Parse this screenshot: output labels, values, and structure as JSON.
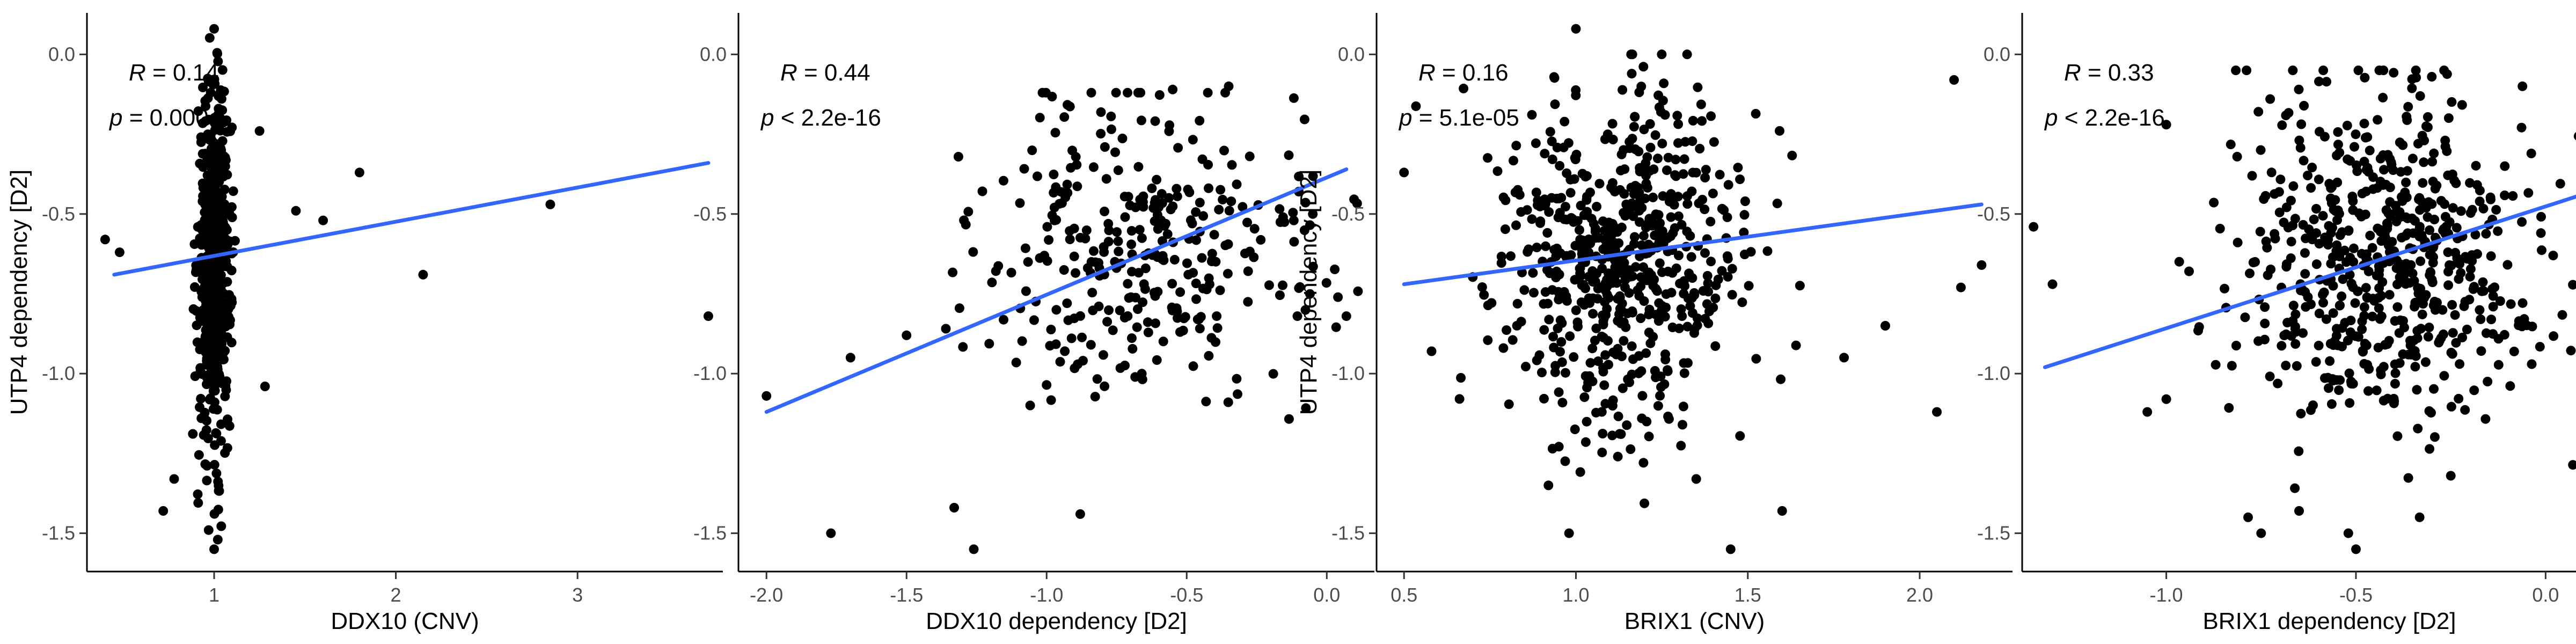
{
  "colors": {
    "point": "#000000",
    "fit_line": "#3366FF",
    "tick_text": "#4d4d4d"
  },
  "chart_data": [
    {
      "type": "scatter",
      "xlabel": "DDX10 (CNV)",
      "ylabel": "UTP4 dependency [D2]",
      "xlim": [
        0.3,
        3.8
      ],
      "ylim": [
        -1.62,
        0.13
      ],
      "xticks": [
        1,
        2,
        3
      ],
      "xtick_labels": [
        "1",
        "2",
        "3"
      ],
      "yticks": [
        0.0,
        -0.5,
        -1.0,
        -1.5
      ],
      "ytick_labels": [
        "0.0",
        "-0.5",
        "-1.0",
        "-1.5"
      ],
      "grid": false,
      "stat_r_label": "R",
      "stat_r_value": " = 0.14",
      "stat_p_label": "p",
      "stat_p_value": " = 0.0004",
      "fit_line": {
        "x": [
          0.45,
          3.72
        ],
        "y": [
          -0.69,
          -0.34
        ]
      },
      "point_cloud": {
        "count": 620,
        "x_center": 1.0,
        "x_spread": 0.045,
        "y_center": -0.66,
        "y_spread": 0.26,
        "y_min": -1.56,
        "y_max": 0.08
      },
      "points": [
        {
          "x": 1.0,
          "y": 0.08
        },
        {
          "x": 0.72,
          "y": -1.43
        },
        {
          "x": 1.0,
          "y": -1.55
        },
        {
          "x": 1.02,
          "y": -1.52
        },
        {
          "x": 0.97,
          "y": -1.49
        },
        {
          "x": 2.15,
          "y": -0.69
        },
        {
          "x": 2.85,
          "y": -0.47
        },
        {
          "x": 3.72,
          "y": -0.82
        },
        {
          "x": 1.6,
          "y": -0.52
        },
        {
          "x": 1.45,
          "y": -0.49
        },
        {
          "x": 1.8,
          "y": -0.37
        },
        {
          "x": 1.25,
          "y": -0.24
        },
        {
          "x": 0.4,
          "y": -0.58
        },
        {
          "x": 0.48,
          "y": -0.62
        },
        {
          "x": 1.28,
          "y": -1.04
        },
        {
          "x": 0.78,
          "y": -1.33
        }
      ]
    },
    {
      "type": "scatter",
      "xlabel": "DDX10 dependency [D2]",
      "ylabel": "",
      "xlim": [
        -2.1,
        0.17
      ],
      "ylim": [
        -1.62,
        0.13
      ],
      "xticks": [
        -2.0,
        -1.5,
        -1.0,
        -0.5,
        0.0
      ],
      "xtick_labels": [
        "-2.0",
        "-1.5",
        "-1.0",
        "-0.5",
        "0.0"
      ],
      "yticks": [
        0.0,
        -0.5,
        -1.0,
        -1.5
      ],
      "ytick_labels": [
        "0.0",
        "-0.5",
        "-1.0",
        "-1.5"
      ],
      "grid": false,
      "stat_r_label": "R",
      "stat_r_value": " = 0.44",
      "stat_p_label": "p",
      "stat_p_value": " < 2.2e-16",
      "fit_line": {
        "x": [
          -2.0,
          0.07
        ],
        "y": [
          -1.12,
          -0.36
        ]
      },
      "point_cloud": {
        "count": 330,
        "x_center": -0.62,
        "x_spread": 0.3,
        "y_center": -0.62,
        "y_spread": 0.25,
        "y_min": -1.3,
        "y_max": -0.12
      },
      "points": [
        {
          "x": -2.0,
          "y": -1.07
        },
        {
          "x": -1.77,
          "y": -1.5
        },
        {
          "x": -1.26,
          "y": -1.55
        },
        {
          "x": -1.33,
          "y": -1.42
        },
        {
          "x": -0.88,
          "y": -1.44
        },
        {
          "x": 0.07,
          "y": -0.82
        },
        {
          "x": -1.7,
          "y": -0.95
        },
        {
          "x": -1.5,
          "y": -0.88
        },
        {
          "x": -0.1,
          "y": -0.43
        },
        {
          "x": -0.05,
          "y": -0.5
        },
        {
          "x": -0.55,
          "y": -0.11
        },
        {
          "x": -0.35,
          "y": -0.1
        }
      ]
    },
    {
      "type": "scatter",
      "xlabel": "BRIX1 (CNV)",
      "ylabel": "UTP4 dependency [D2]",
      "xlim": [
        0.42,
        2.27
      ],
      "ylim": [
        -1.62,
        0.13
      ],
      "xticks": [
        0.5,
        1.0,
        1.5,
        2.0
      ],
      "xtick_labels": [
        "0.5",
        "1.0",
        "1.5",
        "2.0"
      ],
      "yticks": [
        0.0,
        -0.5,
        -1.0,
        -1.5
      ],
      "ytick_labels": [
        "0.0",
        "-0.5",
        "-1.0",
        "-1.5"
      ],
      "grid": false,
      "stat_r_label": "R",
      "stat_r_value": " = 0.16",
      "stat_p_label": "p",
      "stat_p_value": " = 5.1e-05",
      "fit_line": {
        "x": [
          0.5,
          2.18
        ],
        "y": [
          -0.72,
          -0.47
        ]
      },
      "point_cloud": {
        "count": 620,
        "x_center": 1.12,
        "x_spread": 0.18,
        "y_center": -0.64,
        "y_spread": 0.27,
        "y_min": -1.5,
        "y_max": 0.0
      },
      "points": [
        {
          "x": 1.0,
          "y": 0.08
        },
        {
          "x": 0.5,
          "y": -0.37
        },
        {
          "x": 0.58,
          "y": -0.93
        },
        {
          "x": 0.98,
          "y": -1.5
        },
        {
          "x": 1.45,
          "y": -1.55
        },
        {
          "x": 1.6,
          "y": -1.43
        },
        {
          "x": 1.35,
          "y": -1.33
        },
        {
          "x": 2.18,
          "y": -0.66
        },
        {
          "x": 2.12,
          "y": -0.73
        },
        {
          "x": 2.1,
          "y": -0.08
        },
        {
          "x": 2.05,
          "y": -1.12
        },
        {
          "x": 1.9,
          "y": -0.85
        },
        {
          "x": 1.78,
          "y": -0.95
        },
        {
          "x": 0.92,
          "y": -1.35
        }
      ]
    },
    {
      "type": "scatter",
      "xlabel": "BRIX1 dependency [D2]",
      "ylabel": "",
      "xlim": [
        -1.38,
        0.24
      ],
      "ylim": [
        -1.62,
        0.13
      ],
      "xticks": [
        -1.0,
        -0.5,
        0.0
      ],
      "xtick_labels": [
        "-1.0",
        "-0.5",
        "0.0"
      ],
      "yticks": [
        0.0,
        -0.5,
        -1.0,
        -1.5
      ],
      "ytick_labels": [
        "0.0",
        "-0.5",
        "-1.0",
        "-1.5"
      ],
      "grid": false,
      "stat_r_label": "R",
      "stat_r_value": " = 0.33",
      "stat_p_label": "p",
      "stat_p_value": " < 2.2e-16",
      "fit_line": {
        "x": [
          -1.32,
          0.2
        ],
        "y": [
          -0.98,
          -0.4
        ]
      },
      "point_cloud": {
        "count": 620,
        "x_center": -0.42,
        "x_spread": 0.2,
        "y_center": -0.64,
        "y_spread": 0.27,
        "y_min": -1.45,
        "y_max": -0.05
      },
      "points": [
        {
          "x": -1.35,
          "y": -0.54
        },
        {
          "x": -1.3,
          "y": -0.72
        },
        {
          "x": -1.0,
          "y": -0.22
        },
        {
          "x": -0.5,
          "y": -1.55
        },
        {
          "x": -0.52,
          "y": -1.5
        },
        {
          "x": -0.25,
          "y": -1.32
        },
        {
          "x": -0.75,
          "y": -1.5
        },
        {
          "x": 0.2,
          "y": -0.62
        },
        {
          "x": 0.1,
          "y": -0.32
        },
        {
          "x": 0.02,
          "y": -0.63
        },
        {
          "x": -1.05,
          "y": -1.12
        },
        {
          "x": -1.0,
          "y": -1.08
        },
        {
          "x": -0.65,
          "y": -1.43
        },
        {
          "x": -0.3,
          "y": -0.07
        }
      ]
    }
  ]
}
